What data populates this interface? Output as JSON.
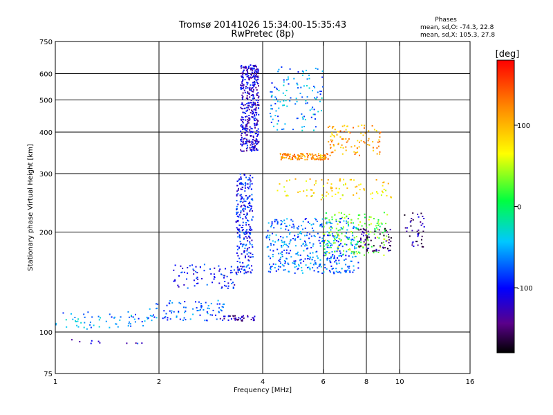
{
  "chart_data": {
    "type": "scatter",
    "title_line1": "Tromsø 20141026 15:34:00-15:35:43",
    "title_line2": "RwPretec (8p)",
    "xlabel": "Frequency [MHz]",
    "ylabel": "Stationary phase Virtual Height [km]",
    "x_scale": "log",
    "y_scale": "log",
    "xlim": [
      1,
      16
    ],
    "ylim": [
      75,
      750
    ],
    "x_ticks": [
      1,
      2,
      4,
      6,
      8,
      10,
      16
    ],
    "y_ticks": [
      75,
      100,
      200,
      300,
      400,
      500,
      600,
      750
    ],
    "x_grid": [
      2,
      4,
      6,
      8,
      10
    ],
    "y_grid": [
      100,
      200,
      300,
      400,
      500,
      600
    ],
    "grid": true,
    "phases": {
      "heading": "Phases",
      "o_stats": "mean, sd,O: -74.3, 22.8",
      "x_stats": "mean, sd,X: 105.3, 27.8"
    },
    "colorbar": {
      "label": "[deg]",
      "range": [
        -180,
        180
      ],
      "ticks": [
        100,
        0,
        -100
      ],
      "tick_labels": [
        "100",
        "0",
        "-100"
      ]
    },
    "clusters": [
      {
        "x": [
          1.0,
          1.85
        ],
        "y": [
          102,
          115
        ],
        "phase": -60,
        "density": 60
      },
      {
        "x": [
          1.85,
          3.1
        ],
        "y": [
          108,
          125
        ],
        "phase": -75,
        "density": 90
      },
      {
        "x": [
          2.2,
          3.4
        ],
        "y": [
          135,
          160
        ],
        "phase": -100,
        "density": 80
      },
      {
        "x": [
          3.35,
          3.75
        ],
        "y": [
          150,
          300
        ],
        "phase": -95,
        "density": 260
      },
      {
        "x": [
          3.45,
          3.9
        ],
        "y": [
          350,
          640
        ],
        "phase": -115,
        "density": 420
      },
      {
        "x": [
          3.0,
          3.8
        ],
        "y": [
          108,
          112
        ],
        "phase": -125,
        "density": 40
      },
      {
        "x": [
          4.1,
          7.6
        ],
        "y": [
          150,
          220
        ],
        "phase": -70,
        "density": 420
      },
      {
        "x": [
          6.0,
          9.2
        ],
        "y": [
          170,
          230
        ],
        "phase": 30,
        "density": 160
      },
      {
        "x": [
          4.5,
          6.2
        ],
        "y": [
          330,
          345
        ],
        "phase": 115,
        "density": 120
      },
      {
        "x": [
          4.2,
          6.0
        ],
        "y": [
          400,
          640
        ],
        "phase": -60,
        "density": 120
      },
      {
        "x": [
          6.2,
          8.8
        ],
        "y": [
          340,
          420
        ],
        "phase": 110,
        "density": 100
      },
      {
        "x": [
          4.4,
          9.5
        ],
        "y": [
          250,
          290
        ],
        "phase": 80,
        "density": 90
      },
      {
        "x": [
          7.6,
          9.5
        ],
        "y": [
          175,
          205
        ],
        "phase": -150,
        "density": 70
      },
      {
        "x": [
          10.3,
          11.8
        ],
        "y": [
          180,
          230
        ],
        "phase": -140,
        "density": 40
      },
      {
        "x": [
          1.05,
          1.8
        ],
        "y": [
          90,
          95
        ],
        "phase": -110,
        "density": 10
      }
    ]
  }
}
